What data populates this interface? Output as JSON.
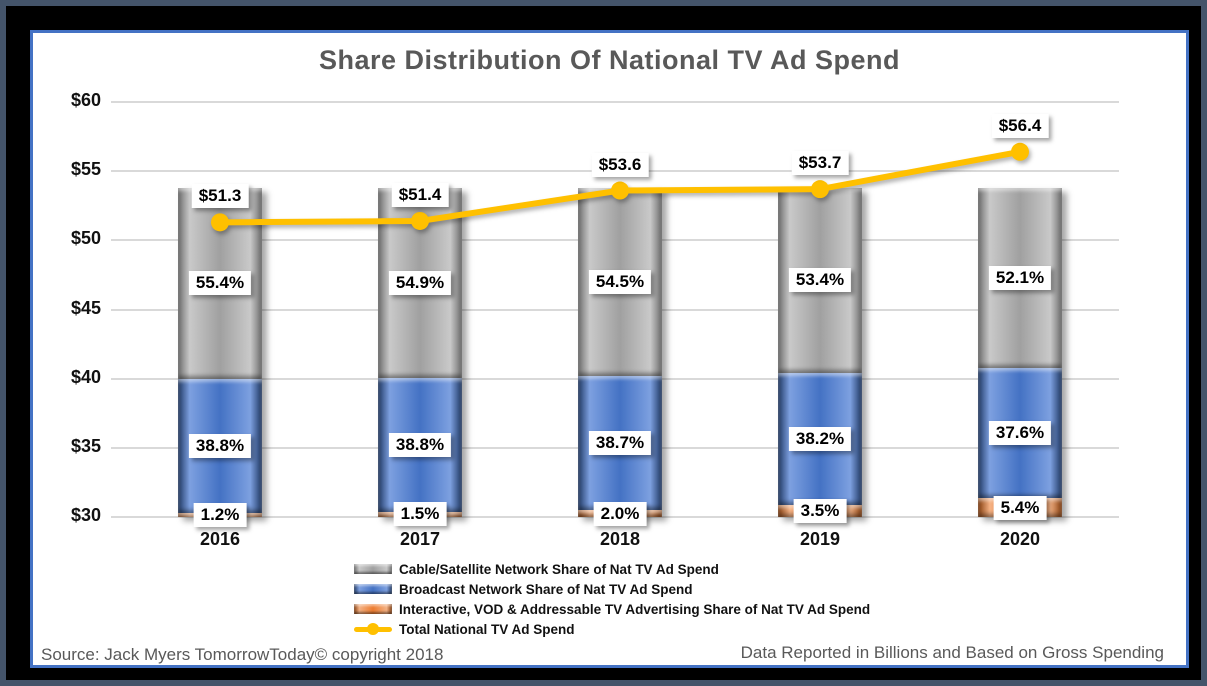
{
  "title": "Share Distribution Of National TV Ad Spend",
  "footer": {
    "source": "Source: Jack Myers TomorrowToday© copyright 2018",
    "note": "Data Reported in Billions and Based on Gross Spending"
  },
  "colors": {
    "cable_gray": "#a6a6a6",
    "broadcast_blue": "#4472c4",
    "interactive_orange": "#ed7d31",
    "total_line_yellow": "#ffc000",
    "title_gray": "#595959",
    "gridline": "#d9d9d9",
    "frame_outer": "#44546a",
    "frame_inner_line": "#4472c4"
  },
  "chart_data": {
    "type": "bar",
    "subtype": "stacked-percent-bars-with-line-overlay",
    "title": "Share Distribution Of National TV Ad Spend",
    "categories": [
      "2016",
      "2017",
      "2018",
      "2019",
      "2020"
    ],
    "series": [
      {
        "name": "Cable/Satellite Network Share of Nat TV Ad Spend",
        "type": "bar",
        "color": "#a6a6a6",
        "unit": "%",
        "values": [
          55.4,
          54.9,
          54.5,
          53.4,
          52.1
        ]
      },
      {
        "name": "Broadcast Network Share of Nat TV Ad Spend",
        "type": "bar",
        "color": "#4472c4",
        "unit": "%",
        "values": [
          38.8,
          38.8,
          38.7,
          38.2,
          37.6
        ]
      },
      {
        "name": "Interactive, VOD & Addressable TV Advertising Share of Nat TV Ad Spend",
        "type": "bar",
        "color": "#ed7d31",
        "unit": "%",
        "values": [
          1.2,
          1.5,
          2.0,
          3.5,
          5.4
        ]
      },
      {
        "name": "Total National TV Ad Spend",
        "type": "line",
        "color": "#ffc000",
        "unit": "$B",
        "values": [
          51.3,
          51.4,
          53.6,
          53.7,
          56.4
        ],
        "labels": [
          "$51.3",
          "$51.4",
          "$53.6",
          "$53.7",
          "$56.4"
        ]
      }
    ],
    "y_axis": {
      "min": 30,
      "max": 60,
      "step": 5,
      "tick_labels": [
        "$60",
        "$55",
        "$50",
        "$45",
        "$40",
        "$35",
        "$30"
      ]
    },
    "bar_span": {
      "bottom_value": 30,
      "top_value": 53.8
    },
    "grid": true,
    "legend_position": "bottom"
  }
}
